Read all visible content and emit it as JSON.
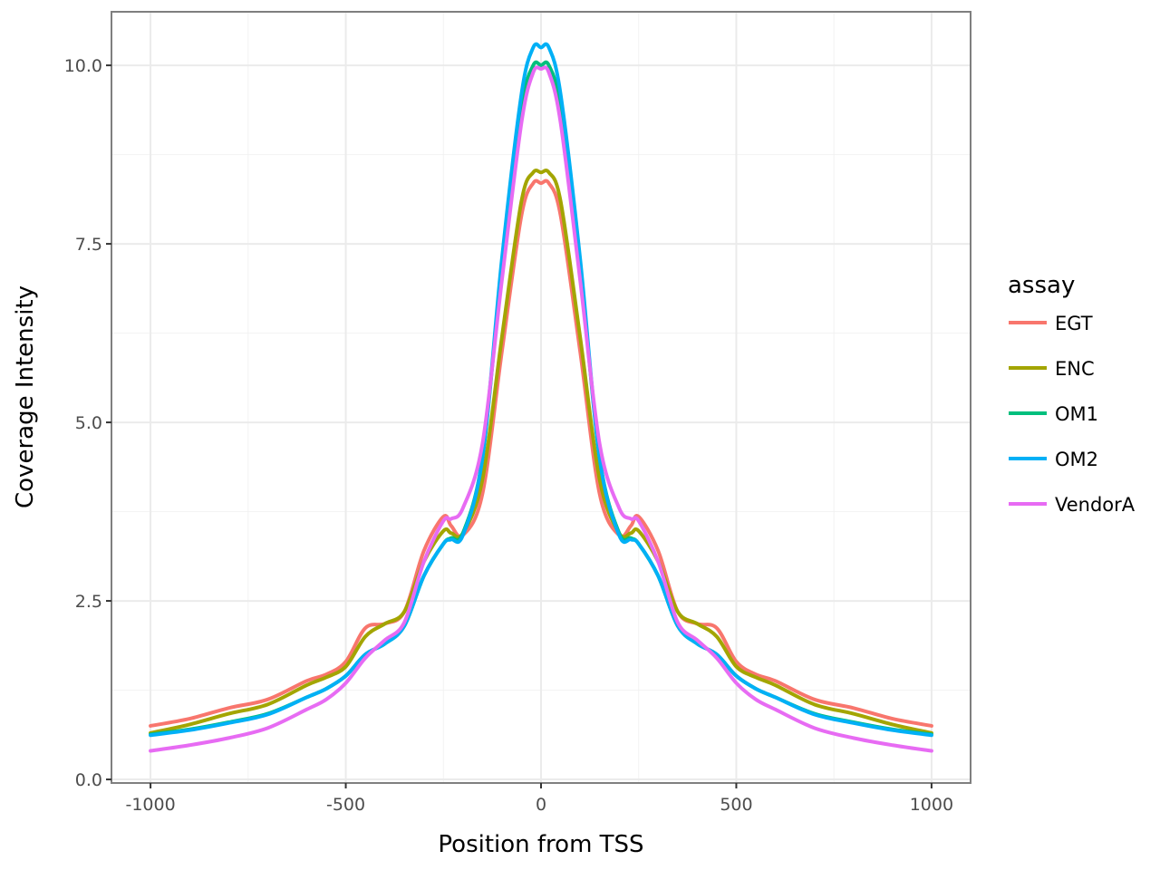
{
  "chart_data": {
    "type": "line",
    "title": "",
    "xlabel": "Position from TSS",
    "ylabel": "Coverage Intensity",
    "xlim": [
      -1100,
      1100
    ],
    "ylim": [
      -0.05,
      10.75
    ],
    "x_ticks": [
      -1000,
      -500,
      0,
      500,
      1000
    ],
    "x_tick_labels": [
      "-1000",
      "-500",
      "0",
      "500",
      "1000"
    ],
    "y_ticks": [
      0,
      2.5,
      5,
      7.5,
      10
    ],
    "y_tick_labels": [
      "0.0",
      "2.5",
      "5.0",
      "7.5",
      "10.0"
    ],
    "grid": true,
    "legend": {
      "title": "assay",
      "placement": "right"
    },
    "x": [
      -1000,
      -900,
      -800,
      -700,
      -600,
      -550,
      -500,
      -450,
      -400,
      -350,
      -300,
      -250,
      -230,
      -200,
      -150,
      -100,
      -50,
      -20,
      0,
      20,
      50,
      100,
      150,
      200,
      230,
      250,
      300,
      350,
      400,
      450,
      500,
      550,
      600,
      700,
      800,
      900,
      1000
    ],
    "series": [
      {
        "name": "EGT",
        "color": "#F8766D",
        "values": [
          0.75,
          0.85,
          1.0,
          1.12,
          1.38,
          1.47,
          1.65,
          2.12,
          2.18,
          2.35,
          3.2,
          3.68,
          3.55,
          3.42,
          4.0,
          6.0,
          7.9,
          8.35,
          8.35,
          8.35,
          7.9,
          6.0,
          4.0,
          3.42,
          3.55,
          3.68,
          3.2,
          2.35,
          2.18,
          2.12,
          1.65,
          1.47,
          1.38,
          1.12,
          1.0,
          0.85,
          0.75
        ]
      },
      {
        "name": "ENC",
        "color": "#A3A500",
        "values": [
          0.65,
          0.77,
          0.92,
          1.05,
          1.32,
          1.43,
          1.58,
          2.0,
          2.18,
          2.35,
          3.05,
          3.48,
          3.45,
          3.45,
          4.2,
          6.2,
          8.1,
          8.5,
          8.5,
          8.5,
          8.1,
          6.2,
          4.2,
          3.45,
          3.45,
          3.48,
          3.05,
          2.35,
          2.18,
          2.0,
          1.58,
          1.43,
          1.32,
          1.05,
          0.92,
          0.77,
          0.65
        ]
      },
      {
        "name": "OM1",
        "color": "#00BF7D",
        "values": [
          0.63,
          0.7,
          0.8,
          0.92,
          1.15,
          1.27,
          1.45,
          1.75,
          1.9,
          2.15,
          2.85,
          3.3,
          3.38,
          3.45,
          4.5,
          7.2,
          9.4,
          10.0,
          10.0,
          10.0,
          9.4,
          7.2,
          4.5,
          3.45,
          3.38,
          3.3,
          2.85,
          2.15,
          1.9,
          1.75,
          1.45,
          1.27,
          1.15,
          0.92,
          0.8,
          0.7,
          0.63
        ]
      },
      {
        "name": "OM2",
        "color": "#00B0F6",
        "values": [
          0.62,
          0.69,
          0.79,
          0.91,
          1.15,
          1.27,
          1.45,
          1.75,
          1.9,
          2.15,
          2.85,
          3.3,
          3.36,
          3.42,
          4.5,
          7.3,
          9.6,
          10.25,
          10.25,
          10.25,
          9.6,
          7.3,
          4.5,
          3.42,
          3.36,
          3.3,
          2.85,
          2.15,
          1.9,
          1.75,
          1.45,
          1.27,
          1.15,
          0.91,
          0.79,
          0.69,
          0.62
        ]
      },
      {
        "name": "VendorA",
        "color": "#E76BF3",
        "values": [
          0.4,
          0.48,
          0.58,
          0.72,
          0.98,
          1.12,
          1.35,
          1.7,
          1.95,
          2.2,
          3.05,
          3.62,
          3.65,
          3.8,
          4.7,
          7.0,
          9.2,
          9.9,
          9.95,
          9.9,
          9.2,
          7.0,
          4.7,
          3.8,
          3.65,
          3.62,
          3.05,
          2.2,
          1.95,
          1.7,
          1.35,
          1.12,
          0.98,
          0.72,
          0.58,
          0.48,
          0.4
        ]
      }
    ]
  }
}
